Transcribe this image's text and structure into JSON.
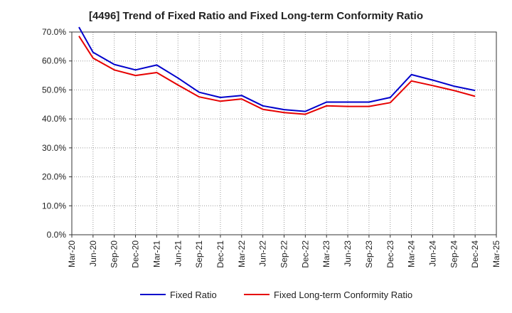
{
  "chart_data": {
    "type": "line",
    "title": "[4496]  Trend of Fixed Ratio and Fixed Long-term Conformity Ratio",
    "xlabel": "",
    "ylabel": "",
    "ylim": [
      0,
      70
    ],
    "yticks": [
      "0.0%",
      "10.0%",
      "20.0%",
      "30.0%",
      "40.0%",
      "50.0%",
      "60.0%",
      "70.0%"
    ],
    "x_tick_labels": [
      "Mar-20",
      "Jun-20",
      "Sep-20",
      "Dec-20",
      "Mar-21",
      "Jun-21",
      "Sep-21",
      "Dec-21",
      "Mar-22",
      "Jun-22",
      "Sep-22",
      "Dec-22",
      "Mar-23",
      "Jun-23",
      "Sep-23",
      "Dec-23",
      "Mar-24",
      "Jun-24",
      "Sep-24",
      "Dec-24",
      "Mar-25"
    ],
    "x": [
      "Jun-20",
      "Sep-20",
      "Dec-20",
      "Mar-21",
      "Jun-21",
      "Sep-21",
      "Dec-21",
      "Mar-22",
      "Jun-22",
      "Sep-22",
      "Dec-22",
      "Mar-23",
      "Jun-23",
      "Sep-23",
      "Dec-23",
      "Mar-24",
      "Jun-24",
      "Sep-24",
      "Dec-24"
    ],
    "x_first_point": "Apr-20",
    "grid": true,
    "legend_position": "bottom",
    "series": [
      {
        "name": "Fixed Ratio",
        "color": "#0000cc",
        "points": [
          {
            "x": "Apr-20",
            "y": 71.7
          },
          {
            "x": "Jun-20",
            "y": 63.0
          },
          {
            "x": "Sep-20",
            "y": 58.8
          },
          {
            "x": "Dec-20",
            "y": 56.9
          },
          {
            "x": "Mar-21",
            "y": 58.6
          },
          {
            "x": "Jun-21",
            "y": 54.1
          },
          {
            "x": "Sep-21",
            "y": 49.2
          },
          {
            "x": "Dec-21",
            "y": 47.4
          },
          {
            "x": "Mar-22",
            "y": 48.1
          },
          {
            "x": "Jun-22",
            "y": 44.5
          },
          {
            "x": "Sep-22",
            "y": 43.2
          },
          {
            "x": "Dec-22",
            "y": 42.6
          },
          {
            "x": "Mar-23",
            "y": 45.8
          },
          {
            "x": "Jun-23",
            "y": 45.8
          },
          {
            "x": "Sep-23",
            "y": 45.8
          },
          {
            "x": "Dec-23",
            "y": 47.4
          },
          {
            "x": "Mar-24",
            "y": 55.3
          },
          {
            "x": "Jun-24",
            "y": 53.4
          },
          {
            "x": "Sep-24",
            "y": 51.3
          },
          {
            "x": "Dec-24",
            "y": 49.8
          }
        ]
      },
      {
        "name": "Fixed Long-term Conformity Ratio",
        "color": "#e60000",
        "points": [
          {
            "x": "Apr-20",
            "y": 68.6
          },
          {
            "x": "Jun-20",
            "y": 61.0
          },
          {
            "x": "Sep-20",
            "y": 56.9
          },
          {
            "x": "Dec-20",
            "y": 55.0
          },
          {
            "x": "Mar-21",
            "y": 56.0
          },
          {
            "x": "Jun-21",
            "y": 51.7
          },
          {
            "x": "Sep-21",
            "y": 47.6
          },
          {
            "x": "Dec-21",
            "y": 46.1
          },
          {
            "x": "Mar-22",
            "y": 46.9
          },
          {
            "x": "Jun-22",
            "y": 43.3
          },
          {
            "x": "Sep-22",
            "y": 42.2
          },
          {
            "x": "Dec-22",
            "y": 41.6
          },
          {
            "x": "Mar-23",
            "y": 44.5
          },
          {
            "x": "Jun-23",
            "y": 44.3
          },
          {
            "x": "Sep-23",
            "y": 44.3
          },
          {
            "x": "Dec-23",
            "y": 45.6
          },
          {
            "x": "Mar-24",
            "y": 53.1
          },
          {
            "x": "Jun-24",
            "y": 51.5
          },
          {
            "x": "Sep-24",
            "y": 49.8
          },
          {
            "x": "Dec-24",
            "y": 47.8
          }
        ]
      }
    ]
  }
}
